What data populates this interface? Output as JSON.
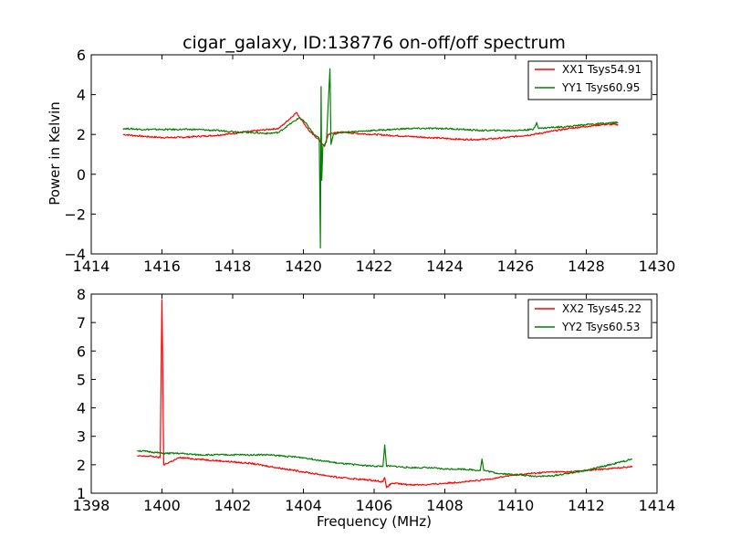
{
  "title": "cigar_galaxy, ID:138776 on-off/off spectrum",
  "colors": {
    "xx": "#ff0000",
    "yy": "#008000"
  },
  "chart_data": [
    {
      "type": "line",
      "title": "cigar_galaxy, ID:138776 on-off/off spectrum",
      "xlabel": "",
      "ylabel": "Power in Kelvin",
      "xlim": [
        1414,
        1430
      ],
      "ylim": [
        -4,
        6
      ],
      "xticks": [
        "1414",
        "1416",
        "1418",
        "1420",
        "1422",
        "1424",
        "1426",
        "1428",
        "1430"
      ],
      "yticks": [
        "−4",
        "−2",
        "0",
        "2",
        "4",
        "6"
      ],
      "legend_position": "top-right",
      "series": [
        {
          "name": "XX1 Tsys54.91",
          "color": "#ff0000",
          "points": [
            [
              1414.9,
              2.0
            ],
            [
              1415.5,
              1.9
            ],
            [
              1416.0,
              1.85
            ],
            [
              1416.5,
              1.85
            ],
            [
              1417.0,
              1.9
            ],
            [
              1417.5,
              1.95
            ],
            [
              1418.0,
              2.05
            ],
            [
              1418.5,
              2.15
            ],
            [
              1419.0,
              2.25
            ],
            [
              1419.3,
              2.3
            ],
            [
              1419.5,
              2.6
            ],
            [
              1419.8,
              3.1
            ],
            [
              1420.0,
              2.6
            ],
            [
              1420.2,
              2.1
            ],
            [
              1420.4,
              1.8
            ],
            [
              1420.5,
              1.6
            ],
            [
              1420.6,
              1.4
            ],
            [
              1420.7,
              2.0
            ],
            [
              1420.9,
              2.1
            ],
            [
              1421.2,
              2.1
            ],
            [
              1421.5,
              2.05
            ],
            [
              1422.0,
              2.0
            ],
            [
              1422.5,
              1.95
            ],
            [
              1423.0,
              1.9
            ],
            [
              1423.5,
              1.85
            ],
            [
              1424.0,
              1.8
            ],
            [
              1424.5,
              1.75
            ],
            [
              1425.0,
              1.75
            ],
            [
              1425.5,
              1.8
            ],
            [
              1426.0,
              1.9
            ],
            [
              1426.5,
              2.0
            ],
            [
              1427.0,
              2.15
            ],
            [
              1427.5,
              2.3
            ],
            [
              1428.0,
              2.4
            ],
            [
              1428.5,
              2.5
            ],
            [
              1428.9,
              2.5
            ]
          ]
        },
        {
          "name": "YY1 Tsys60.95",
          "color": "#008000",
          "points": [
            [
              1414.9,
              2.3
            ],
            [
              1415.5,
              2.25
            ],
            [
              1416.0,
              2.25
            ],
            [
              1416.5,
              2.25
            ],
            [
              1417.0,
              2.25
            ],
            [
              1417.5,
              2.2
            ],
            [
              1418.0,
              2.15
            ],
            [
              1418.5,
              2.1
            ],
            [
              1419.0,
              2.05
            ],
            [
              1419.3,
              2.1
            ],
            [
              1419.6,
              2.5
            ],
            [
              1419.9,
              2.85
            ],
            [
              1420.1,
              2.5
            ],
            [
              1420.3,
              2.0
            ],
            [
              1420.45,
              1.8
            ],
            [
              1420.48,
              -3.7
            ],
            [
              1420.5,
              4.4
            ],
            [
              1420.52,
              -0.3
            ],
            [
              1420.55,
              1.4
            ],
            [
              1420.65,
              1.6
            ],
            [
              1420.75,
              5.3
            ],
            [
              1420.78,
              1.5
            ],
            [
              1420.85,
              2.0
            ],
            [
              1421.0,
              2.1
            ],
            [
              1421.5,
              2.15
            ],
            [
              1422.0,
              2.2
            ],
            [
              1422.5,
              2.25
            ],
            [
              1423.0,
              2.3
            ],
            [
              1423.5,
              2.3
            ],
            [
              1424.0,
              2.3
            ],
            [
              1424.5,
              2.25
            ],
            [
              1425.0,
              2.2
            ],
            [
              1425.5,
              2.2
            ],
            [
              1426.0,
              2.2
            ],
            [
              1426.5,
              2.25
            ],
            [
              1426.6,
              2.6
            ],
            [
              1426.65,
              2.3
            ],
            [
              1427.0,
              2.35
            ],
            [
              1427.5,
              2.4
            ],
            [
              1428.0,
              2.5
            ],
            [
              1428.5,
              2.55
            ],
            [
              1428.9,
              2.6
            ]
          ]
        }
      ]
    },
    {
      "type": "line",
      "title": "",
      "xlabel": "Frequency (MHz)",
      "ylabel": "",
      "xlim": [
        1398,
        1414
      ],
      "ylim": [
        1,
        8
      ],
      "xticks": [
        "1398",
        "1400",
        "1402",
        "1404",
        "1406",
        "1408",
        "1410",
        "1412",
        "1414"
      ],
      "yticks": [
        "1",
        "2",
        "3",
        "4",
        "5",
        "6",
        "7",
        "8"
      ],
      "legend_position": "top-right",
      "series": [
        {
          "name": "XX2 Tsys45.22",
          "color": "#ff0000",
          "points": [
            [
              1399.3,
              2.3
            ],
            [
              1399.7,
              2.3
            ],
            [
              1399.95,
              2.25
            ],
            [
              1400.0,
              7.8
            ],
            [
              1400.05,
              2.0
            ],
            [
              1400.5,
              2.25
            ],
            [
              1401.0,
              2.2
            ],
            [
              1401.5,
              2.15
            ],
            [
              1402.0,
              2.1
            ],
            [
              1402.5,
              2.05
            ],
            [
              1403.0,
              1.95
            ],
            [
              1403.5,
              1.85
            ],
            [
              1404.0,
              1.75
            ],
            [
              1404.5,
              1.65
            ],
            [
              1405.0,
              1.55
            ],
            [
              1405.5,
              1.5
            ],
            [
              1406.0,
              1.45
            ],
            [
              1406.25,
              1.4
            ],
            [
              1406.3,
              1.55
            ],
            [
              1406.35,
              1.2
            ],
            [
              1406.5,
              1.35
            ],
            [
              1407.0,
              1.3
            ],
            [
              1407.5,
              1.3
            ],
            [
              1408.0,
              1.35
            ],
            [
              1408.5,
              1.4
            ],
            [
              1409.0,
              1.45
            ],
            [
              1409.5,
              1.55
            ],
            [
              1410.0,
              1.65
            ],
            [
              1410.5,
              1.7
            ],
            [
              1411.0,
              1.75
            ],
            [
              1411.5,
              1.75
            ],
            [
              1412.0,
              1.8
            ],
            [
              1412.5,
              1.85
            ],
            [
              1413.0,
              1.9
            ],
            [
              1413.3,
              1.95
            ]
          ]
        },
        {
          "name": "YY2 Tsys60.53",
          "color": "#008000",
          "points": [
            [
              1399.3,
              2.5
            ],
            [
              1399.7,
              2.45
            ],
            [
              1400.0,
              2.4
            ],
            [
              1400.5,
              2.4
            ],
            [
              1401.0,
              2.35
            ],
            [
              1401.5,
              2.35
            ],
            [
              1402.0,
              2.35
            ],
            [
              1402.5,
              2.35
            ],
            [
              1403.0,
              2.35
            ],
            [
              1403.5,
              2.3
            ],
            [
              1404.0,
              2.25
            ],
            [
              1404.5,
              2.15
            ],
            [
              1405.0,
              2.05
            ],
            [
              1405.5,
              2.0
            ],
            [
              1406.0,
              1.95
            ],
            [
              1406.25,
              1.95
            ],
            [
              1406.3,
              2.7
            ],
            [
              1406.35,
              1.95
            ],
            [
              1406.5,
              1.95
            ],
            [
              1407.0,
              1.9
            ],
            [
              1407.5,
              1.9
            ],
            [
              1408.0,
              1.85
            ],
            [
              1408.5,
              1.85
            ],
            [
              1409.0,
              1.8
            ],
            [
              1409.05,
              2.2
            ],
            [
              1409.1,
              1.8
            ],
            [
              1409.5,
              1.7
            ],
            [
              1410.0,
              1.65
            ],
            [
              1410.5,
              1.6
            ],
            [
              1411.0,
              1.6
            ],
            [
              1411.5,
              1.7
            ],
            [
              1412.0,
              1.8
            ],
            [
              1412.5,
              1.95
            ],
            [
              1413.0,
              2.1
            ],
            [
              1413.3,
              2.2
            ]
          ]
        }
      ]
    }
  ]
}
